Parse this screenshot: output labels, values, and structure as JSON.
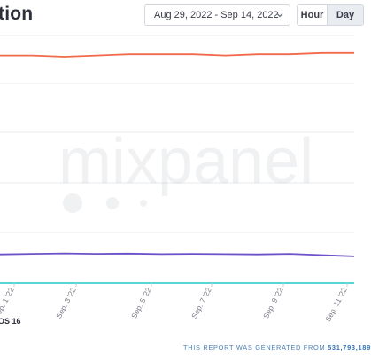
{
  "header": {
    "title": "tion",
    "date_range": "Aug 29, 2022 - Sep 14, 2022",
    "granularity": [
      "Hour",
      "Day"
    ],
    "selected_granularity": "Day"
  },
  "watermark": {
    "text": "mixpanel"
  },
  "chart_data": {
    "type": "line",
    "x_ticks": [
      "Sep. 1 '22",
      "Sep. 3 '22",
      "Sep. 5 '22",
      "Sep. 7 '22",
      "Sep. 9 '22",
      "Sep. 11 '22"
    ],
    "series": [
      {
        "color": "#f06a4a",
        "values": [
          0.92,
          0.92,
          0.915,
          0.92,
          0.925,
          0.925,
          0.925,
          0.92,
          0.925,
          0.925,
          0.93,
          0.93
        ]
      },
      {
        "color": "#6c51c9",
        "values": [
          0.116,
          0.118,
          0.12,
          0.118,
          0.119,
          0.117,
          0.118,
          0.117,
          0.116,
          0.118,
          0.113,
          0.108
        ]
      },
      {
        "color": "#3fd1d0",
        "values": [
          0.0,
          0.0,
          0.0,
          0.0,
          0.0,
          0.0,
          0.0,
          0.0,
          0.0,
          0.0,
          0.0,
          0.0
        ]
      }
    ],
    "grid": true
  },
  "legend": {
    "visible_label": "OS 16"
  },
  "footer": {
    "prefix": "THIS REPORT WAS GENERATED FROM",
    "count": "531,793,189"
  },
  "colors": {
    "accent": "#2f74b8",
    "grid": "#e6e8ec"
  }
}
